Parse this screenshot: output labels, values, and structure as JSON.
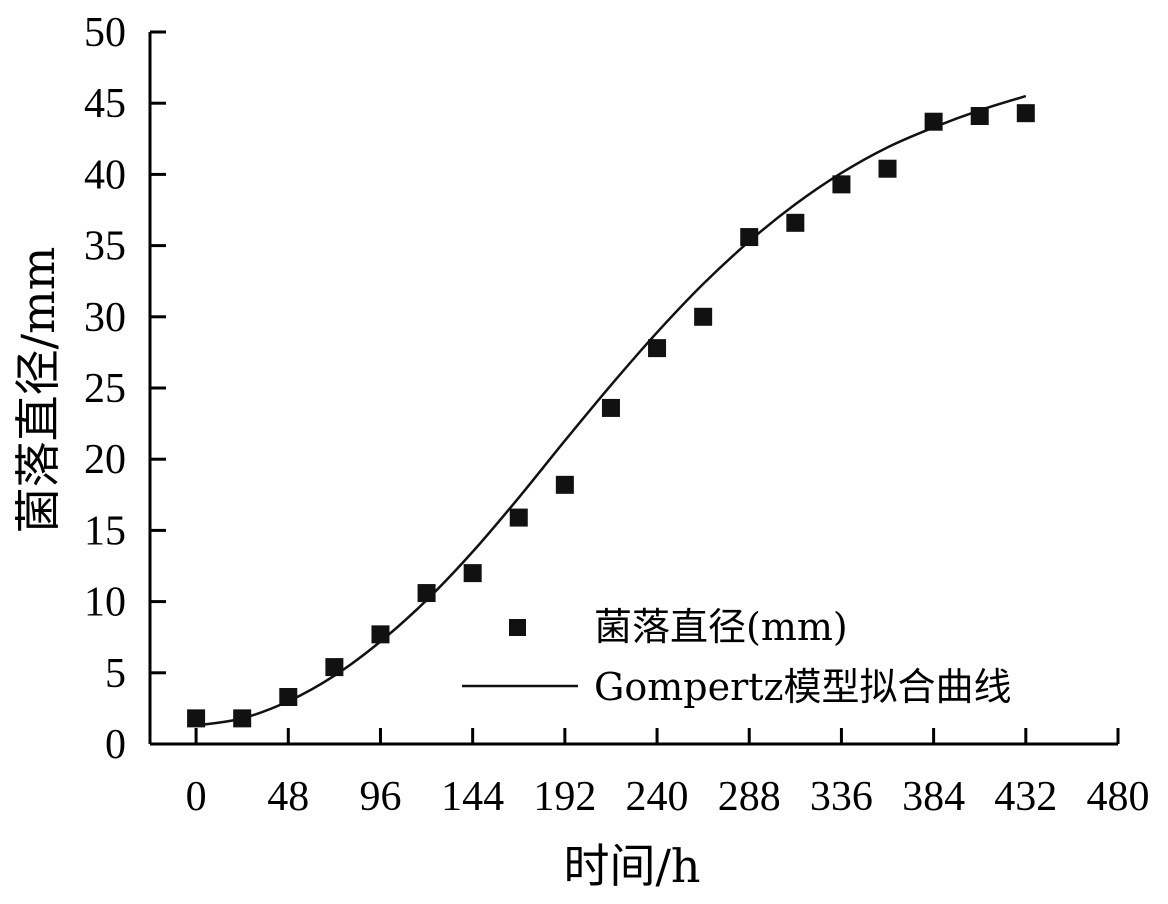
{
  "chart_data": {
    "type": "scatter",
    "title": "",
    "xlabel": "时间/h",
    "ylabel": "菌落直径/mm",
    "xlim": [
      -24,
      480
    ],
    "ylim": [
      0,
      50
    ],
    "x_ticks": [
      0,
      48,
      96,
      144,
      192,
      240,
      288,
      336,
      384,
      432,
      480
    ],
    "y_ticks": [
      0,
      5,
      10,
      15,
      20,
      25,
      30,
      35,
      40,
      45,
      50
    ],
    "grid": false,
    "legend_position": "bottom-right",
    "series": [
      {
        "name": "菌落直径(mm)",
        "kind": "scatter",
        "marker": "square",
        "x": [
          0,
          24,
          48,
          72,
          96,
          120,
          144,
          168,
          192,
          216,
          240,
          264,
          288,
          312,
          336,
          360,
          384,
          408,
          432
        ],
        "y": [
          1.8,
          1.8,
          3.3,
          5.4,
          7.7,
          10.6,
          12.0,
          15.9,
          18.2,
          23.6,
          27.8,
          30.0,
          35.6,
          36.6,
          39.3,
          40.4,
          43.7,
          44.1,
          44.3
        ]
      },
      {
        "name": "Gompertz模型拟合曲线",
        "kind": "line",
        "x": [
          0,
          24,
          48,
          72,
          96,
          120,
          144,
          168,
          192,
          216,
          240,
          264,
          288,
          312,
          336,
          360,
          384,
          408,
          432
        ],
        "y": [
          1.3,
          1.8,
          3.0,
          4.8,
          7.2,
          10.1,
          13.5,
          17.3,
          21.3,
          25.2,
          28.9,
          32.3,
          35.3,
          37.9,
          40.1,
          41.9,
          43.3,
          44.5,
          45.5
        ]
      }
    ]
  }
}
